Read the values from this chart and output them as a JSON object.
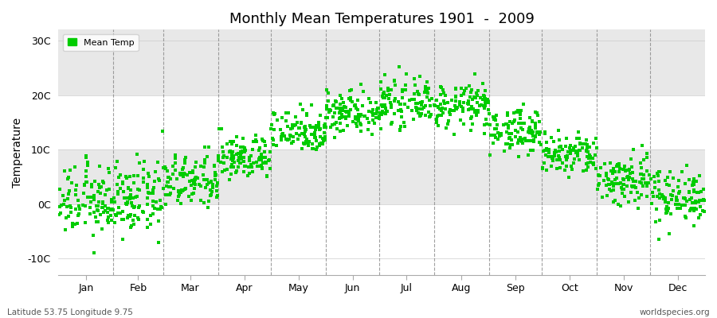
{
  "title": "Monthly Mean Temperatures 1901  -  2009",
  "ylabel": "Temperature",
  "xlabel_labels": [
    "Jan",
    "Feb",
    "Mar",
    "Apr",
    "May",
    "Jun",
    "Jul",
    "Aug",
    "Sep",
    "Oct",
    "Nov",
    "Dec"
  ],
  "ytick_labels": [
    "-10C",
    "0C",
    "10C",
    "20C",
    "30C"
  ],
  "ytick_values": [
    -10,
    0,
    10,
    20,
    30
  ],
  "ylim": [
    -13,
    32
  ],
  "legend_label": "Mean Temp",
  "dot_color": "#00cc00",
  "dot_size": 5,
  "background_color": "#ffffff",
  "plot_bg_color": "#f0f0f0",
  "footer_left": "Latitude 53.75 Longitude 9.75",
  "footer_right": "worldspecies.org",
  "monthly_means": [
    0.5,
    0.8,
    4.0,
    8.5,
    13.5,
    17.0,
    18.5,
    18.0,
    13.5,
    9.0,
    4.5,
    1.5
  ],
  "monthly_stds": [
    3.2,
    3.2,
    2.5,
    2.0,
    2.0,
    2.0,
    2.0,
    2.0,
    2.0,
    2.0,
    2.5,
    2.5
  ],
  "n_years": 109,
  "start_year": 1901,
  "end_year": 2009,
  "month_days": [
    31,
    28,
    31,
    30,
    31,
    30,
    31,
    31,
    30,
    31,
    30,
    31
  ]
}
